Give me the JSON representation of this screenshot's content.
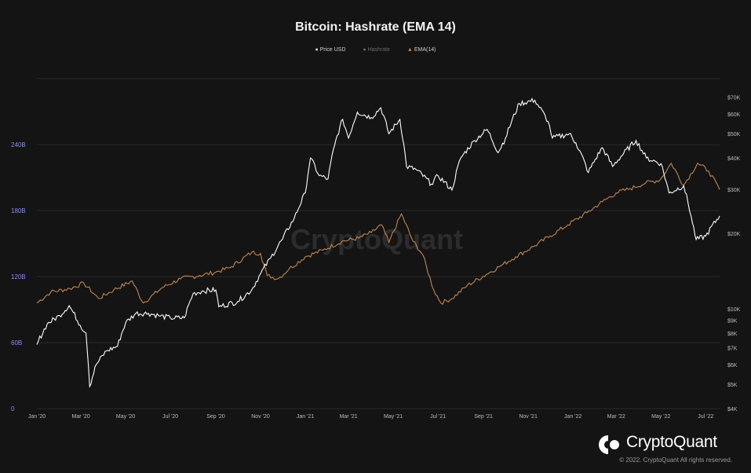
{
  "chart_data": {
    "type": "line",
    "title": "Bitcoin: Hashrate (EMA 14)",
    "x_ticks": [
      "Jan '20",
      "Mar '20",
      "May '20",
      "Jul '20",
      "Sep '20",
      "Nov '20",
      "Jan '21",
      "Mar '21",
      "May '21",
      "Jul '21",
      "Sep '21",
      "Nov '21",
      "Jan '22",
      "Mar '22",
      "May '22",
      "Jul '22"
    ],
    "x_range": [
      "2020-01-01",
      "2022-07-20"
    ],
    "y_left": {
      "ticks": [
        "0",
        "60B",
        "120B",
        "180B",
        "240B"
      ],
      "values": [
        0,
        60,
        120,
        180,
        240
      ],
      "range": [
        0,
        300
      ],
      "unit": "B",
      "color": "#8a8cff"
    },
    "y_right": {
      "scale": "log",
      "ticks": [
        "$4K",
        "$5K",
        "$6K",
        "$7K",
        "$8K",
        "$9K",
        "$10K",
        "$20K",
        "$30K",
        "$40K",
        "$50K",
        "$60K",
        "$70K"
      ],
      "values": [
        4000,
        5000,
        6000,
        7000,
        8000,
        9000,
        10000,
        20000,
        30000,
        40000,
        50000,
        60000,
        70000
      ],
      "range": [
        4000,
        83000
      ]
    },
    "grid": true,
    "legend_position": "top-center",
    "series": [
      {
        "name": "Price USD",
        "axis": "right",
        "color": "#ffffff",
        "points": [
          [
            "2020-01-01",
            7200
          ],
          [
            "2020-01-15",
            8700
          ],
          [
            "2020-02-01",
            9400
          ],
          [
            "2020-02-14",
            10300
          ],
          [
            "2020-02-29",
            8600
          ],
          [
            "2020-03-08",
            8000
          ],
          [
            "2020-03-13",
            4900
          ],
          [
            "2020-03-22",
            6000
          ],
          [
            "2020-04-05",
            6800
          ],
          [
            "2020-04-20",
            7100
          ],
          [
            "2020-05-01",
            8800
          ],
          [
            "2020-05-15",
            9600
          ],
          [
            "2020-06-01",
            9600
          ],
          [
            "2020-06-15",
            9400
          ],
          [
            "2020-07-01",
            9200
          ],
          [
            "2020-07-20",
            9200
          ],
          [
            "2020-08-01",
            11500
          ],
          [
            "2020-08-15",
            11800
          ],
          [
            "2020-09-01",
            11900
          ],
          [
            "2020-09-05",
            10200
          ],
          [
            "2020-10-01",
            10700
          ],
          [
            "2020-10-20",
            11900
          ],
          [
            "2020-11-01",
            13800
          ],
          [
            "2020-11-15",
            16000
          ],
          [
            "2020-12-01",
            19000
          ],
          [
            "2020-12-17",
            23000
          ],
          [
            "2021-01-01",
            29000
          ],
          [
            "2021-01-08",
            40000
          ],
          [
            "2021-01-20",
            34000
          ],
          [
            "2021-02-01",
            33000
          ],
          [
            "2021-02-10",
            45000
          ],
          [
            "2021-02-21",
            57000
          ],
          [
            "2021-03-01",
            48000
          ],
          [
            "2021-03-13",
            61000
          ],
          [
            "2021-04-01",
            58000
          ],
          [
            "2021-04-14",
            63500
          ],
          [
            "2021-04-25",
            50000
          ],
          [
            "2021-05-10",
            57000
          ],
          [
            "2021-05-19",
            37000
          ],
          [
            "2021-06-01",
            36000
          ],
          [
            "2021-06-22",
            31500
          ],
          [
            "2021-07-01",
            34000
          ],
          [
            "2021-07-20",
            29800
          ],
          [
            "2021-08-01",
            40000
          ],
          [
            "2021-08-20",
            47000
          ],
          [
            "2021-09-06",
            52000
          ],
          [
            "2021-09-21",
            42000
          ],
          [
            "2021-10-01",
            48000
          ],
          [
            "2021-10-20",
            66000
          ],
          [
            "2021-11-10",
            68000
          ],
          [
            "2021-11-28",
            56000
          ],
          [
            "2021-12-04",
            48000
          ],
          [
            "2021-12-27",
            50000
          ],
          [
            "2022-01-05",
            46000
          ],
          [
            "2022-01-22",
            35000
          ],
          [
            "2022-02-10",
            44000
          ],
          [
            "2022-02-24",
            37000
          ],
          [
            "2022-03-28",
            47000
          ],
          [
            "2022-04-11",
            40000
          ],
          [
            "2022-05-01",
            38000
          ],
          [
            "2022-05-12",
            29000
          ],
          [
            "2022-06-01",
            31000
          ],
          [
            "2022-06-13",
            22000
          ],
          [
            "2022-06-18",
            18900
          ],
          [
            "2022-07-01",
            19500
          ],
          [
            "2022-07-20",
            23500
          ]
        ]
      },
      {
        "name": "Hashrate",
        "axis": "left",
        "color": "#6a6a6a",
        "points": []
      },
      {
        "name": "EMA(14)",
        "axis": "left",
        "color": "#c08850",
        "points": [
          [
            "2020-01-01",
            96
          ],
          [
            "2020-01-20",
            106
          ],
          [
            "2020-02-15",
            109
          ],
          [
            "2020-03-05",
            114
          ],
          [
            "2020-03-25",
            100
          ],
          [
            "2020-04-15",
            108
          ],
          [
            "2020-05-10",
            116
          ],
          [
            "2020-05-25",
            96
          ],
          [
            "2020-06-20",
            110
          ],
          [
            "2020-07-15",
            118
          ],
          [
            "2020-08-10",
            121
          ],
          [
            "2020-09-01",
            124
          ],
          [
            "2020-09-20",
            128
          ],
          [
            "2020-10-20",
            142
          ],
          [
            "2020-11-01",
            141
          ],
          [
            "2020-11-10",
            121
          ],
          [
            "2020-11-25",
            118
          ],
          [
            "2020-12-10",
            127
          ],
          [
            "2021-01-01",
            138
          ],
          [
            "2021-01-25",
            144
          ],
          [
            "2021-02-20",
            152
          ],
          [
            "2021-03-15",
            155
          ],
          [
            "2021-04-01",
            160
          ],
          [
            "2021-04-15",
            167
          ],
          [
            "2021-04-25",
            151
          ],
          [
            "2021-05-12",
            177
          ],
          [
            "2021-05-28",
            152
          ],
          [
            "2021-06-10",
            140
          ],
          [
            "2021-06-25",
            108
          ],
          [
            "2021-07-05",
            96
          ],
          [
            "2021-07-20",
            100
          ],
          [
            "2021-08-10",
            112
          ],
          [
            "2021-09-05",
            122
          ],
          [
            "2021-09-25",
            130
          ],
          [
            "2021-10-15",
            138
          ],
          [
            "2021-11-10",
            148
          ],
          [
            "2021-12-01",
            157
          ],
          [
            "2021-12-25",
            167
          ],
          [
            "2022-01-20",
            178
          ],
          [
            "2022-02-10",
            188
          ],
          [
            "2022-03-01",
            196
          ],
          [
            "2022-03-20",
            200
          ],
          [
            "2022-04-10",
            205
          ],
          [
            "2022-04-30",
            208
          ],
          [
            "2022-05-15",
            223
          ],
          [
            "2022-06-01",
            203
          ],
          [
            "2022-06-20",
            223
          ],
          [
            "2022-07-05",
            216
          ],
          [
            "2022-07-20",
            199
          ]
        ]
      }
    ],
    "watermark": "CryptoQuant"
  },
  "brand": {
    "name": "CryptoQuant",
    "copyright": "© 2022. CryptoQuant All rights reserved."
  },
  "colors": {
    "background": "#141414",
    "grid": "#2a2a2a",
    "price": "#ffffff",
    "ema": "#c08850",
    "left_axis": "#8a8cff"
  }
}
